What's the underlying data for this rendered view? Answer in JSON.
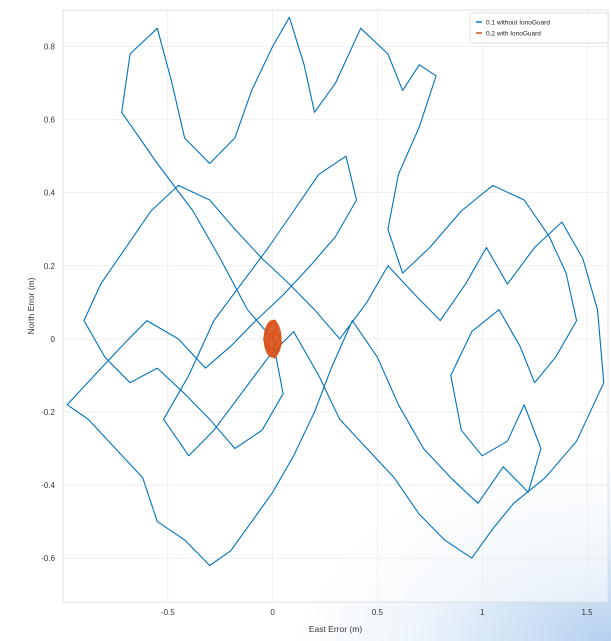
{
  "chart_data": {
    "type": "line",
    "title": "",
    "xlabel": "East Error (m)",
    "ylabel": "North Error (m)",
    "xlim": [
      -1.0,
      1.6
    ],
    "ylim": [
      -0.72,
      0.9
    ],
    "xticks": [
      -0.5,
      0,
      0.5,
      1,
      1.5
    ],
    "xtick_labels": [
      "-0.5",
      "0",
      "0.5",
      "1",
      "1.5"
    ],
    "yticks": [
      -0.6,
      -0.4,
      -0.2,
      0,
      0.2,
      0.4,
      0.6,
      0.8
    ],
    "ytick_labels": [
      "-0.6",
      "-0.4",
      "-0.2",
      "0",
      "0.2",
      "0.4",
      "0.6",
      "0.8"
    ],
    "grid": true,
    "legend_position": "top-right",
    "series": [
      {
        "name": "0.1 without IonoGuard",
        "color": "#0072BD",
        "description_extent": {
          "x_range": [
            -0.98,
            1.6
          ],
          "y_range": [
            -0.65,
            0.88
          ]
        },
        "points": [
          [
            0.0,
            0.0
          ],
          [
            -0.12,
            0.08
          ],
          [
            -0.25,
            0.22
          ],
          [
            -0.38,
            0.35
          ],
          [
            -0.55,
            0.48
          ],
          [
            -0.72,
            0.62
          ],
          [
            -0.68,
            0.78
          ],
          [
            -0.55,
            0.85
          ],
          [
            -0.48,
            0.7
          ],
          [
            -0.42,
            0.55
          ],
          [
            -0.3,
            0.48
          ],
          [
            -0.18,
            0.55
          ],
          [
            -0.1,
            0.68
          ],
          [
            0.0,
            0.8
          ],
          [
            0.08,
            0.88
          ],
          [
            0.15,
            0.75
          ],
          [
            0.2,
            0.62
          ],
          [
            0.3,
            0.7
          ],
          [
            0.42,
            0.85
          ],
          [
            0.55,
            0.78
          ],
          [
            0.62,
            0.68
          ],
          [
            0.7,
            0.75
          ],
          [
            0.78,
            0.72
          ],
          [
            0.7,
            0.58
          ],
          [
            0.6,
            0.45
          ],
          [
            0.55,
            0.3
          ],
          [
            0.62,
            0.18
          ],
          [
            0.75,
            0.25
          ],
          [
            0.9,
            0.35
          ],
          [
            1.05,
            0.42
          ],
          [
            1.2,
            0.38
          ],
          [
            1.32,
            0.28
          ],
          [
            1.4,
            0.18
          ],
          [
            1.45,
            0.05
          ],
          [
            1.35,
            -0.05
          ],
          [
            1.25,
            -0.12
          ],
          [
            1.18,
            -0.02
          ],
          [
            1.08,
            0.08
          ],
          [
            0.95,
            0.02
          ],
          [
            0.85,
            -0.1
          ],
          [
            0.9,
            -0.25
          ],
          [
            1.0,
            -0.32
          ],
          [
            1.12,
            -0.28
          ],
          [
            1.2,
            -0.18
          ],
          [
            1.28,
            -0.3
          ],
          [
            1.22,
            -0.42
          ],
          [
            1.1,
            -0.35
          ],
          [
            0.98,
            -0.45
          ],
          [
            0.85,
            -0.38
          ],
          [
            0.72,
            -0.3
          ],
          [
            0.6,
            -0.18
          ],
          [
            0.5,
            -0.05
          ],
          [
            0.38,
            0.05
          ],
          [
            0.28,
            -0.08
          ],
          [
            0.2,
            -0.2
          ],
          [
            0.1,
            -0.32
          ],
          [
            0.0,
            -0.42
          ],
          [
            -0.1,
            -0.5
          ],
          [
            -0.2,
            -0.58
          ],
          [
            -0.3,
            -0.62
          ],
          [
            -0.42,
            -0.55
          ],
          [
            -0.55,
            -0.5
          ],
          [
            -0.62,
            -0.38
          ],
          [
            -0.75,
            -0.3
          ],
          [
            -0.88,
            -0.22
          ],
          [
            -0.98,
            -0.18
          ],
          [
            -0.85,
            -0.1
          ],
          [
            -0.72,
            -0.02
          ],
          [
            -0.6,
            0.05
          ],
          [
            -0.45,
            0.0
          ],
          [
            -0.32,
            -0.08
          ],
          [
            -0.2,
            -0.02
          ],
          [
            -0.08,
            0.05
          ],
          [
            0.05,
            0.12
          ],
          [
            0.18,
            0.2
          ],
          [
            0.3,
            0.28
          ],
          [
            0.4,
            0.38
          ],
          [
            0.35,
            0.5
          ],
          [
            0.22,
            0.45
          ],
          [
            0.1,
            0.35
          ],
          [
            -0.02,
            0.25
          ],
          [
            -0.15,
            0.15
          ],
          [
            -0.28,
            0.05
          ],
          [
            -0.4,
            -0.1
          ],
          [
            -0.52,
            -0.22
          ],
          [
            -0.4,
            -0.32
          ],
          [
            -0.28,
            -0.25
          ],
          [
            -0.15,
            -0.15
          ],
          [
            -0.02,
            -0.05
          ],
          [
            0.1,
            0.02
          ],
          [
            0.22,
            -0.1
          ],
          [
            0.32,
            -0.22
          ],
          [
            0.45,
            -0.3
          ],
          [
            0.58,
            -0.38
          ],
          [
            0.7,
            -0.48
          ],
          [
            0.82,
            -0.55
          ],
          [
            0.95,
            -0.6
          ],
          [
            1.05,
            -0.52
          ],
          [
            1.15,
            -0.45
          ],
          [
            1.3,
            -0.38
          ],
          [
            1.45,
            -0.28
          ],
          [
            1.58,
            -0.12
          ],
          [
            1.55,
            0.08
          ],
          [
            1.48,
            0.22
          ],
          [
            1.38,
            0.32
          ],
          [
            1.25,
            0.25
          ],
          [
            1.12,
            0.15
          ],
          [
            1.02,
            0.25
          ],
          [
            0.92,
            0.15
          ],
          [
            0.8,
            0.05
          ],
          [
            0.68,
            0.12
          ],
          [
            0.55,
            0.2
          ],
          [
            0.45,
            0.1
          ],
          [
            0.32,
            0.0
          ],
          [
            0.2,
            0.08
          ],
          [
            0.08,
            0.15
          ],
          [
            -0.05,
            0.22
          ],
          [
            -0.18,
            0.3
          ],
          [
            -0.3,
            0.38
          ],
          [
            -0.45,
            0.42
          ],
          [
            -0.58,
            0.35
          ],
          [
            -0.7,
            0.25
          ],
          [
            -0.82,
            0.15
          ],
          [
            -0.9,
            0.05
          ],
          [
            -0.8,
            -0.05
          ],
          [
            -0.68,
            -0.12
          ],
          [
            -0.55,
            -0.08
          ],
          [
            -0.42,
            -0.15
          ],
          [
            -0.3,
            -0.22
          ],
          [
            -0.18,
            -0.3
          ],
          [
            -0.05,
            -0.25
          ],
          [
            0.05,
            -0.15
          ],
          [
            0.0,
            0.0
          ]
        ]
      },
      {
        "name": "0.2 with IonoGuard",
        "color": "#D95319",
        "description_extent": {
          "x_range": [
            -0.04,
            0.04
          ],
          "y_range": [
            -0.05,
            0.05
          ]
        },
        "points": [
          [
            0.0,
            0.0
          ],
          [
            0.02,
            0.03
          ],
          [
            0.01,
            0.05
          ],
          [
            -0.01,
            0.04
          ],
          [
            -0.03,
            0.02
          ],
          [
            -0.04,
            0.0
          ],
          [
            -0.03,
            -0.02
          ],
          [
            -0.01,
            -0.04
          ],
          [
            0.01,
            -0.05
          ],
          [
            0.03,
            -0.03
          ],
          [
            0.04,
            -0.01
          ],
          [
            0.03,
            0.01
          ],
          [
            0.01,
            0.02
          ],
          [
            -0.02,
            0.01
          ],
          [
            -0.02,
            -0.02
          ],
          [
            0.0,
            -0.03
          ],
          [
            0.02,
            -0.01
          ],
          [
            0.0,
            0.0
          ]
        ]
      }
    ]
  }
}
